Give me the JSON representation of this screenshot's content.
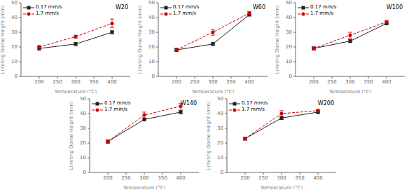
{
  "chart_data": [
    {
      "type": "line",
      "title": "W20",
      "x": [
        200,
        300,
        400
      ],
      "xlabel": "Temperature (°C)",
      "ylabel": "Limiting Dome Height (mm)",
      "xlim": [
        150,
        450
      ],
      "ylim": [
        0,
        50
      ],
      "xticks": [
        200,
        250,
        300,
        350,
        400
      ],
      "yticks": [
        0,
        10,
        20,
        30,
        40,
        50
      ],
      "grid": false,
      "legend": "upper left",
      "series": [
        {
          "name": "0.17 mm/s",
          "color": "#222222",
          "marker": "square",
          "line_style": "solid",
          "values": [
            19,
            22,
            30
          ],
          "errors": [
            1,
            1,
            1
          ]
        },
        {
          "name": "1.7 mm/s",
          "color": "#cc0000",
          "marker": "circle",
          "line_style": "dashed",
          "values": [
            20,
            27,
            36
          ],
          "errors": [
            1,
            1,
            3
          ]
        }
      ]
    },
    {
      "type": "line",
      "title": "W60",
      "x": [
        200,
        300,
        400
      ],
      "xlabel": "Temperature (°C)",
      "ylabel": "Limiting Dome Height (mm)",
      "xlim": [
        150,
        450
      ],
      "ylim": [
        0,
        50
      ],
      "xticks": [
        200,
        250,
        300,
        350,
        400
      ],
      "yticks": [
        0,
        10,
        20,
        30,
        40,
        50
      ],
      "grid": false,
      "legend": "upper left",
      "series": [
        {
          "name": "0.17 mm/s",
          "color": "#222222",
          "marker": "square",
          "line_style": "solid",
          "values": [
            18,
            22,
            42
          ],
          "errors": [
            1,
            1,
            1
          ]
        },
        {
          "name": "1.7 mm/s",
          "color": "#cc0000",
          "marker": "circle",
          "line_style": "dashed",
          "values": [
            18,
            30,
            43
          ],
          "errors": [
            1,
            2,
            1
          ]
        }
      ]
    },
    {
      "type": "line",
      "title": "W100",
      "x": [
        200,
        300,
        400
      ],
      "xlabel": "Temperature (°C)",
      "ylabel": "Limiting Dome Height (mm)",
      "xlim": [
        150,
        450
      ],
      "ylim": [
        0,
        50
      ],
      "xticks": [
        200,
        250,
        300,
        350,
        400
      ],
      "yticks": [
        0,
        10,
        20,
        30,
        40,
        50
      ],
      "grid": false,
      "legend": "upper left",
      "series": [
        {
          "name": "0.17 mm/s",
          "color": "#222222",
          "marker": "square",
          "line_style": "solid",
          "values": [
            19,
            24,
            36
          ],
          "errors": [
            1,
            1,
            1
          ]
        },
        {
          "name": "1.7 mm/s",
          "color": "#cc0000",
          "marker": "circle",
          "line_style": "dashed",
          "values": [
            19,
            28,
            37
          ],
          "errors": [
            1,
            2,
            1
          ]
        }
      ]
    },
    {
      "type": "line",
      "title": "W140",
      "x": [
        200,
        300,
        400
      ],
      "xlabel": "Temperature (°C)",
      "ylabel": "Limiting Dome Height (mm)",
      "xlim": [
        150,
        450
      ],
      "ylim": [
        0,
        50
      ],
      "xticks": [
        200,
        250,
        300,
        350,
        400
      ],
      "yticks": [
        0,
        10,
        20,
        30,
        40,
        50
      ],
      "grid": false,
      "legend": "upper left",
      "series": [
        {
          "name": "0.17 mm/s",
          "color": "#222222",
          "marker": "square",
          "line_style": "solid",
          "values": [
            21,
            36,
            41
          ],
          "errors": [
            1,
            1,
            1
          ]
        },
        {
          "name": "1.7 mm/s",
          "color": "#cc0000",
          "marker": "circle",
          "line_style": "dashed",
          "values": [
            21,
            39,
            45
          ],
          "errors": [
            1,
            2,
            2
          ]
        }
      ]
    },
    {
      "type": "line",
      "title": "W200",
      "x": [
        200,
        300,
        400
      ],
      "xlabel": "Temperature (°C)",
      "ylabel": "Limiting Dome Height (mm)",
      "xlim": [
        150,
        450
      ],
      "ylim": [
        0,
        50
      ],
      "xticks": [
        200,
        250,
        300,
        350,
        400
      ],
      "yticks": [
        0,
        10,
        20,
        30,
        40,
        50
      ],
      "grid": false,
      "legend": "upper left",
      "series": [
        {
          "name": "0.17 mm/s",
          "color": "#222222",
          "marker": "square",
          "line_style": "solid",
          "values": [
            23,
            37,
            41
          ],
          "errors": [
            1,
            1,
            1
          ]
        },
        {
          "name": "1.7 mm/s",
          "color": "#cc0000",
          "marker": "circle",
          "line_style": "dashed",
          "values": [
            23,
            40,
            42
          ],
          "errors": [
            1,
            2,
            1
          ]
        }
      ]
    }
  ]
}
